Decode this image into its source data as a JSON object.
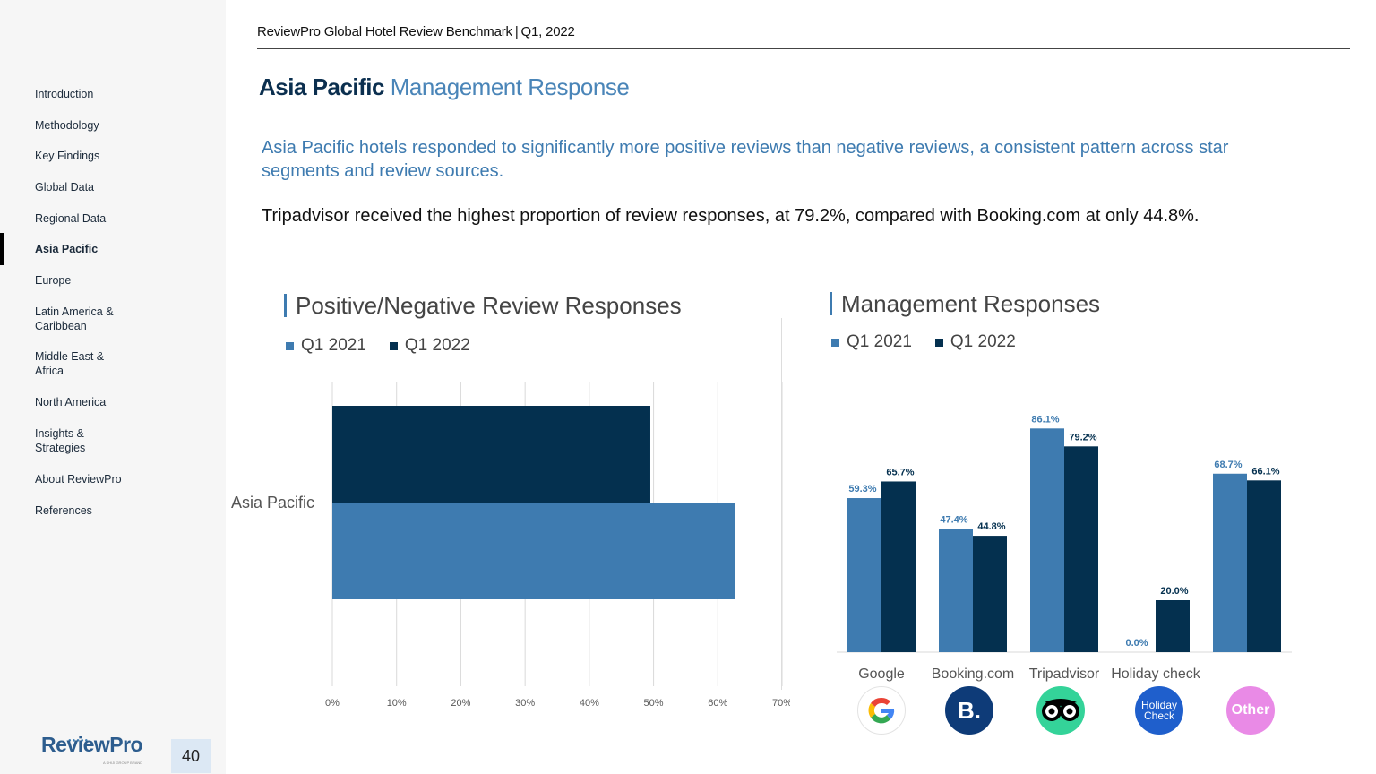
{
  "header": {
    "title": "ReviewPro Global Hotel Review Benchmark",
    "separator": "|",
    "period": "Q1, 2022"
  },
  "page": {
    "title_bold": "Asia Pacific",
    "title_light": "Management Response",
    "number": "40"
  },
  "sidebar": {
    "items": [
      {
        "label": "Introduction"
      },
      {
        "label": "Methodology"
      },
      {
        "label": "Key Findings"
      },
      {
        "label": "Global Data"
      },
      {
        "label": "Regional Data"
      },
      {
        "label": "Asia Pacific"
      },
      {
        "label": "Europe"
      },
      {
        "label": "Latin America & Caribbean"
      },
      {
        "label": "Middle East & Africa"
      },
      {
        "label": "North America"
      },
      {
        "label": "Insights & Strategies"
      },
      {
        "label": "About ReviewPro"
      },
      {
        "label": "References"
      }
    ],
    "logo_text": "ReviewPro",
    "logo_sub": "A SHIJI GROUP BRAND"
  },
  "content": {
    "intro": "Asia Pacific hotels responded to significantly more positive reviews than negative reviews, a consistent pattern across star segments and review sources.",
    "body": "Tripadvisor received the highest proportion of review responses, at 79.2%, compared with Booking.com at only 44.8%."
  },
  "colors": {
    "q1_2021": "#3e7bb0",
    "q1_2022": "#04304f",
    "accent": "#3e7bb0"
  },
  "chart_data": [
    {
      "type": "bar",
      "orientation": "horizontal",
      "title": "Positive/Negative Review Responses",
      "categories": [
        "Asia Pacific"
      ],
      "series": [
        {
          "name": "Q1 2021",
          "values": [
            62.7
          ]
        },
        {
          "name": "Q1 2022",
          "values": [
            49.5
          ]
        }
      ],
      "xlim": [
        0,
        70
      ],
      "ticks": [
        "0%",
        "10%",
        "20%",
        "30%",
        "40%",
        "50%",
        "60%",
        "70%"
      ],
      "grid": true,
      "legend": "top-left"
    },
    {
      "type": "bar",
      "title": "Management Responses",
      "categories": [
        "Google",
        "Booking.com",
        "Tripadvisor",
        "Holiday check",
        "Other"
      ],
      "series": [
        {
          "name": "Q1 2021",
          "values": [
            59.3,
            47.4,
            86.1,
            0.0,
            68.7
          ],
          "labels": [
            "59.3%",
            "47.4%",
            "86.1%",
            "0.0%",
            "68.7%"
          ]
        },
        {
          "name": "Q1 2022",
          "values": [
            65.7,
            44.8,
            79.2,
            20.0,
            66.1
          ],
          "labels": [
            "65.7%",
            "44.8%",
            "79.2%",
            "20.0%",
            "66.1%"
          ]
        }
      ],
      "ylim": [
        0,
        100
      ],
      "legend": "top-left",
      "source_logos": [
        "google-icon",
        "booking-icon",
        "tripadvisor-icon",
        "holidaycheck-icon",
        "other-icon"
      ],
      "logo_text": {
        "booking": "B.",
        "holiday_check": "Holiday Check",
        "other": "Other",
        "google": "G"
      }
    }
  ]
}
